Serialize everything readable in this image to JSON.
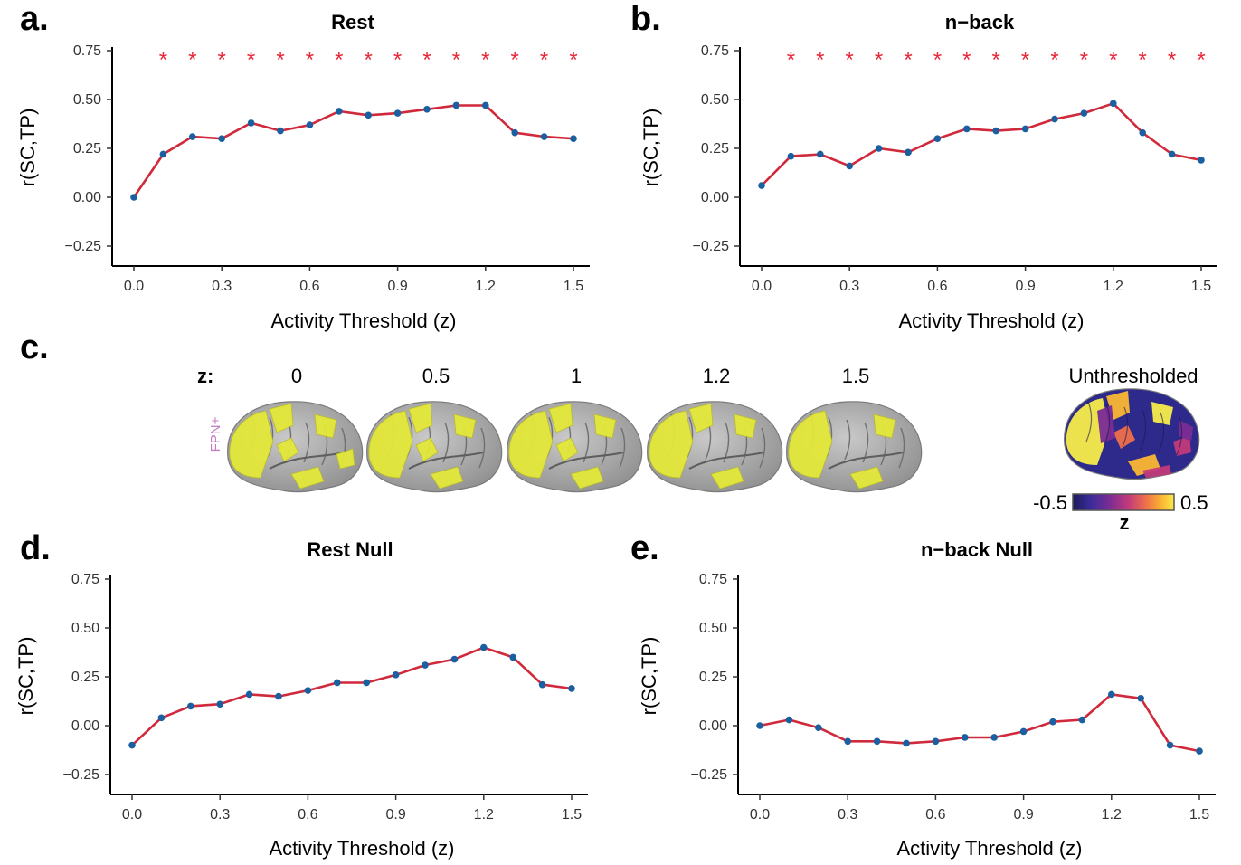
{
  "panels": {
    "a": "a.",
    "b": "b.",
    "c": "c.",
    "d": "d.",
    "e": "e."
  },
  "chart_data": [
    {
      "type": "line",
      "panel": "a",
      "title": "Rest",
      "xlabel": "Activity Threshold (z)",
      "ylabel": "r(SC,TP)",
      "x": [
        0.0,
        0.1,
        0.2,
        0.3,
        0.4,
        0.5,
        0.6,
        0.7,
        0.8,
        0.9,
        1.0,
        1.1,
        1.2,
        1.3,
        1.4,
        1.5
      ],
      "values": [
        0.0,
        0.22,
        0.31,
        0.3,
        0.38,
        0.34,
        0.37,
        0.44,
        0.42,
        0.43,
        0.45,
        0.47,
        0.47,
        0.33,
        0.31,
        0.3
      ],
      "significant": [
        false,
        true,
        true,
        true,
        true,
        true,
        true,
        true,
        true,
        true,
        true,
        true,
        true,
        true,
        true,
        true
      ],
      "xticks": [
        "0.0",
        "0.3",
        "0.6",
        "0.9",
        "1.2",
        "1.5"
      ],
      "yticks": [
        "0.75",
        "0.50",
        "0.25",
        "0.00",
        "−0.25"
      ],
      "xlim": [
        0,
        1.5
      ],
      "ylim": [
        -0.25,
        0.75
      ],
      "line_color": "#d0293b",
      "point_color": "#1a5fa0",
      "star_color": "#e8293a"
    },
    {
      "type": "line",
      "panel": "b",
      "title": "n−back",
      "xlabel": "Activity Threshold (z)",
      "ylabel": "r(SC,TP)",
      "x": [
        0.0,
        0.1,
        0.2,
        0.3,
        0.4,
        0.5,
        0.6,
        0.7,
        0.8,
        0.9,
        1.0,
        1.1,
        1.2,
        1.3,
        1.4,
        1.5
      ],
      "values": [
        0.06,
        0.21,
        0.22,
        0.16,
        0.25,
        0.23,
        0.3,
        0.35,
        0.34,
        0.35,
        0.4,
        0.43,
        0.48,
        0.33,
        0.22,
        0.19
      ],
      "significant": [
        false,
        true,
        true,
        true,
        true,
        true,
        true,
        true,
        true,
        true,
        true,
        true,
        true,
        true,
        true,
        true
      ],
      "xticks": [
        "0.0",
        "0.3",
        "0.6",
        "0.9",
        "1.2",
        "1.5"
      ],
      "yticks": [
        "0.75",
        "0.50",
        "0.25",
        "0.00",
        "−0.25"
      ],
      "xlim": [
        0,
        1.5
      ],
      "ylim": [
        -0.25,
        0.75
      ],
      "line_color": "#d0293b",
      "point_color": "#1a5fa0",
      "star_color": "#e8293a"
    },
    {
      "type": "line",
      "panel": "d",
      "title": "Rest Null",
      "xlabel": "Activity Threshold (z)",
      "ylabel": "r(SC,TP)",
      "x": [
        0.0,
        0.1,
        0.2,
        0.3,
        0.4,
        0.5,
        0.6,
        0.7,
        0.8,
        0.9,
        1.0,
        1.1,
        1.2,
        1.3,
        1.4,
        1.5
      ],
      "values": [
        -0.1,
        0.04,
        0.1,
        0.11,
        0.16,
        0.15,
        0.18,
        0.22,
        0.22,
        0.26,
        0.31,
        0.34,
        0.4,
        0.35,
        0.21,
        0.19
      ],
      "significant": [
        false,
        false,
        false,
        false,
        false,
        false,
        false,
        false,
        false,
        false,
        false,
        false,
        false,
        false,
        false,
        false
      ],
      "xticks": [
        "0.0",
        "0.3",
        "0.6",
        "0.9",
        "1.2",
        "1.5"
      ],
      "yticks": [
        "0.75",
        "0.50",
        "0.25",
        "0.00",
        "−0.25"
      ],
      "xlim": [
        0,
        1.5
      ],
      "ylim": [
        -0.25,
        0.75
      ],
      "line_color": "#d0293b",
      "point_color": "#1a5fa0",
      "star_color": "#e8293a"
    },
    {
      "type": "line",
      "panel": "e",
      "title": "n−back Null",
      "xlabel": "Activity Threshold (z)",
      "ylabel": "r(SC,TP)",
      "x": [
        0.0,
        0.1,
        0.2,
        0.3,
        0.4,
        0.5,
        0.6,
        0.7,
        0.8,
        0.9,
        1.0,
        1.1,
        1.2,
        1.3,
        1.4,
        1.5
      ],
      "values": [
        0.0,
        0.03,
        -0.01,
        -0.08,
        -0.08,
        -0.09,
        -0.08,
        -0.06,
        -0.06,
        -0.03,
        0.02,
        0.03,
        0.16,
        0.14,
        -0.1,
        -0.13
      ],
      "significant": [
        false,
        false,
        false,
        false,
        false,
        false,
        false,
        false,
        false,
        false,
        false,
        false,
        false,
        false,
        false,
        false
      ],
      "xticks": [
        "0.0",
        "0.3",
        "0.6",
        "0.9",
        "1.2",
        "1.5"
      ],
      "yticks": [
        "0.75",
        "0.50",
        "0.25",
        "0.00",
        "−0.25"
      ],
      "xlim": [
        0,
        1.5
      ],
      "ylim": [
        -0.25,
        0.75
      ],
      "line_color": "#d0293b",
      "point_color": "#1a5fa0",
      "star_color": "#e8293a"
    }
  ],
  "brain_row": {
    "z_prefix": "z:",
    "side_label": "FPN+",
    "thresholds": [
      "0",
      "0.5",
      "1",
      "1.2",
      "1.5"
    ],
    "unthresholded_title": "Unthresholded",
    "colorbar_min": "-0.5",
    "colorbar_max": "0.5",
    "colorbar_label": "z",
    "highlight_color": "#e4e83a",
    "brain_color": "#a9a9a9",
    "colormap": [
      "#1c1a5c",
      "#3c2c9a",
      "#7a2c94",
      "#c23a7a",
      "#ee6f4a",
      "#fbb632",
      "#f7ec4a"
    ]
  },
  "star_glyph": "*"
}
